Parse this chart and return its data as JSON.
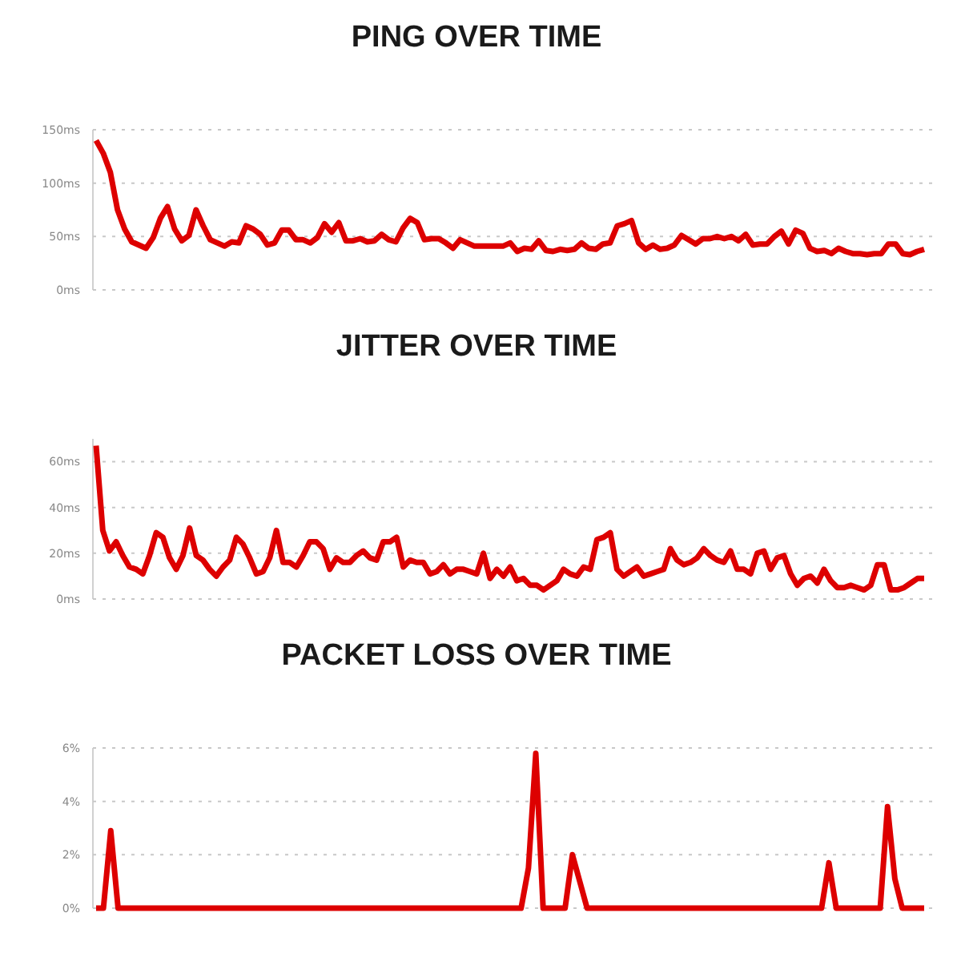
{
  "chart_data": [
    {
      "type": "line",
      "title": "PING OVER TIME",
      "categories": [
        null,
        null,
        null,
        null,
        null,
        null,
        null,
        null,
        null,
        null,
        null,
        null,
        null,
        null,
        null,
        null,
        null,
        null,
        null,
        null,
        null,
        null,
        null,
        null,
        null,
        null,
        null,
        null,
        null,
        null,
        null,
        null,
        null,
        null,
        null,
        null,
        null,
        null,
        null,
        null,
        null,
        null,
        null,
        null,
        null,
        null,
        null,
        null,
        null,
        null,
        null,
        null,
        null,
        null,
        null,
        null,
        null,
        null,
        null,
        null,
        null,
        null,
        null,
        null,
        null,
        null,
        null,
        null,
        null,
        null,
        null,
        null,
        null,
        null,
        null,
        null,
        null,
        null,
        null,
        null,
        null,
        null,
        null,
        null,
        null,
        null,
        null,
        null,
        null,
        null,
        null,
        null,
        null,
        null,
        null,
        null,
        null,
        null,
        null,
        null,
        null,
        null,
        null,
        null,
        null,
        null,
        null,
        null,
        null,
        null,
        null,
        null,
        null,
        null,
        null,
        null,
        null
      ],
      "series": [
        {
          "color": "#dd0000",
          "values": [
            140,
            128,
            110,
            75,
            57,
            45,
            42,
            39,
            49,
            67,
            78,
            57,
            46,
            51,
            75,
            60,
            47,
            44,
            41,
            45,
            44,
            60,
            57,
            52,
            42,
            44,
            56,
            56,
            47,
            47,
            44,
            49,
            62,
            54,
            63,
            46,
            46,
            48,
            45,
            46,
            52,
            47,
            45,
            58,
            67,
            63,
            47,
            48,
            48,
            44,
            39,
            47,
            44,
            41,
            41,
            41,
            41,
            41,
            44,
            36,
            39,
            38,
            46,
            37,
            36,
            38,
            37,
            38,
            44,
            39,
            38,
            43,
            44,
            60,
            62,
            65,
            44,
            38,
            42,
            38,
            39,
            42,
            51,
            47,
            43,
            48,
            48,
            50,
            48,
            50,
            46,
            52,
            42,
            43,
            43,
            50,
            55,
            43,
            56,
            53,
            39,
            36,
            37,
            34,
            39,
            36,
            34,
            34,
            33,
            34,
            34,
            43,
            43,
            34,
            33,
            36,
            38
          ]
        }
      ],
      "ylim": [
        0,
        150
      ],
      "yticks": [
        {
          "value": 0,
          "label": "0ms"
        },
        {
          "value": 50,
          "label": "50ms"
        },
        {
          "value": 100,
          "label": "100ms"
        },
        {
          "value": 150,
          "label": "150ms"
        }
      ],
      "grid": "y",
      "tick_labels": "y",
      "marker": "none",
      "line_style": "solid"
    },
    {
      "type": "line",
      "title": "JITTER OVER TIME",
      "categories": [
        null,
        null,
        null,
        null,
        null,
        null,
        null,
        null,
        null,
        null,
        null,
        null,
        null,
        null,
        null,
        null,
        null,
        null,
        null,
        null,
        null,
        null,
        null,
        null,
        null,
        null,
        null,
        null,
        null,
        null,
        null,
        null,
        null,
        null,
        null,
        null,
        null,
        null,
        null,
        null,
        null,
        null,
        null,
        null,
        null,
        null,
        null,
        null,
        null,
        null,
        null,
        null,
        null,
        null,
        null,
        null,
        null,
        null,
        null,
        null,
        null,
        null,
        null,
        null,
        null,
        null,
        null,
        null,
        null,
        null,
        null,
        null,
        null,
        null,
        null,
        null,
        null,
        null,
        null,
        null,
        null,
        null,
        null,
        null,
        null,
        null,
        null,
        null,
        null,
        null,
        null,
        null,
        null,
        null,
        null,
        null,
        null,
        null,
        null,
        null,
        null,
        null,
        null,
        null,
        null,
        null,
        null,
        null,
        null,
        null,
        null,
        null,
        null,
        null,
        null,
        null,
        null,
        null,
        null,
        null,
        null,
        null,
        null,
        null,
        null
      ],
      "series": [
        {
          "color": "#dd0000",
          "values": [
            67,
            30,
            21,
            25,
            19,
            14,
            13,
            11,
            19,
            29,
            27,
            18,
            13,
            19,
            31,
            19,
            17,
            13,
            10,
            14,
            17,
            27,
            24,
            18,
            11,
            12,
            18,
            30,
            16,
            16,
            14,
            19,
            25,
            25,
            22,
            13,
            18,
            16,
            16,
            19,
            21,
            18,
            17,
            25,
            25,
            27,
            14,
            17,
            16,
            16,
            11,
            12,
            15,
            11,
            13,
            13,
            12,
            11,
            20,
            9,
            13,
            10,
            14,
            8,
            9,
            6,
            6,
            4,
            6,
            8,
            13,
            11,
            10,
            14,
            13,
            26,
            27,
            29,
            13,
            10,
            12,
            14,
            10,
            11,
            12,
            13,
            22,
            17,
            15,
            16,
            18,
            22,
            19,
            17,
            16,
            21,
            13,
            13,
            11,
            20,
            21,
            13,
            18,
            19,
            11,
            6,
            9,
            10,
            7,
            13,
            8,
            5,
            5,
            6,
            5,
            4,
            6,
            15,
            15,
            4,
            4,
            5,
            7,
            9,
            9
          ]
        }
      ],
      "ylim": [
        0,
        70
      ],
      "yticks": [
        {
          "value": 0,
          "label": "0ms"
        },
        {
          "value": 20,
          "label": "20ms"
        },
        {
          "value": 40,
          "label": "40ms"
        },
        {
          "value": 60,
          "label": "60ms"
        }
      ],
      "grid": "y",
      "tick_labels": "y",
      "marker": "none",
      "line_style": "solid"
    },
    {
      "type": "line",
      "title": "PACKET LOSS OVER TIME",
      "categories": [
        null,
        null,
        null,
        null,
        null,
        null,
        null,
        null,
        null,
        null,
        null,
        null,
        null,
        null,
        null,
        null,
        null,
        null,
        null,
        null,
        null,
        null,
        null,
        null,
        null,
        null,
        null,
        null,
        null,
        null,
        null,
        null,
        null,
        null,
        null,
        null,
        null,
        null,
        null,
        null,
        null,
        null,
        null,
        null,
        null,
        null,
        null,
        null,
        null,
        null,
        null,
        null,
        null,
        null,
        null,
        null,
        null,
        null,
        null,
        null,
        null,
        null,
        null,
        null,
        null,
        null,
        null,
        null,
        null,
        null,
        null,
        null,
        null,
        null,
        null,
        null,
        null,
        null,
        null,
        null,
        null,
        null,
        null,
        null,
        null,
        null,
        null,
        null,
        null,
        null,
        null,
        null,
        null,
        null,
        null,
        null,
        null,
        null,
        null,
        null,
        null,
        null,
        null,
        null,
        null,
        null,
        null,
        null,
        null,
        null,
        null,
        null,
        null,
        null
      ],
      "series": [
        {
          "color": "#dd0000",
          "values": [
            0,
            0,
            2.9,
            0,
            0,
            0,
            0,
            0,
            0,
            0,
            0,
            0,
            0,
            0,
            0,
            0,
            0,
            0,
            0,
            0,
            0,
            0,
            0,
            0,
            0,
            0,
            0,
            0,
            0,
            0,
            0,
            0,
            0,
            0,
            0,
            0,
            0,
            0,
            0,
            0,
            0,
            0,
            0,
            0,
            0,
            0,
            0,
            0,
            0,
            0,
            0,
            0,
            0,
            0,
            0,
            0,
            0,
            0,
            0,
            1.5,
            5.8,
            0,
            0,
            0,
            0,
            2.0,
            1.0,
            0,
            0,
            0,
            0,
            0,
            0,
            0,
            0,
            0,
            0,
            0,
            0,
            0,
            0,
            0,
            0,
            0,
            0,
            0,
            0,
            0,
            0,
            0,
            0,
            0,
            0,
            0,
            0,
            0,
            0,
            0,
            0,
            0,
            1.7,
            0,
            0,
            0,
            0,
            0,
            0,
            0,
            3.8,
            1.1,
            0,
            0,
            0,
            0
          ]
        }
      ],
      "ylim": [
        0,
        6
      ],
      "yticks": [
        {
          "value": 0,
          "label": "0%"
        },
        {
          "value": 2,
          "label": "2%"
        },
        {
          "value": 4,
          "label": "4%"
        },
        {
          "value": 6,
          "label": "6%"
        }
      ],
      "grid": "y",
      "tick_labels": "y",
      "marker": "none",
      "line_style": "solid"
    }
  ]
}
